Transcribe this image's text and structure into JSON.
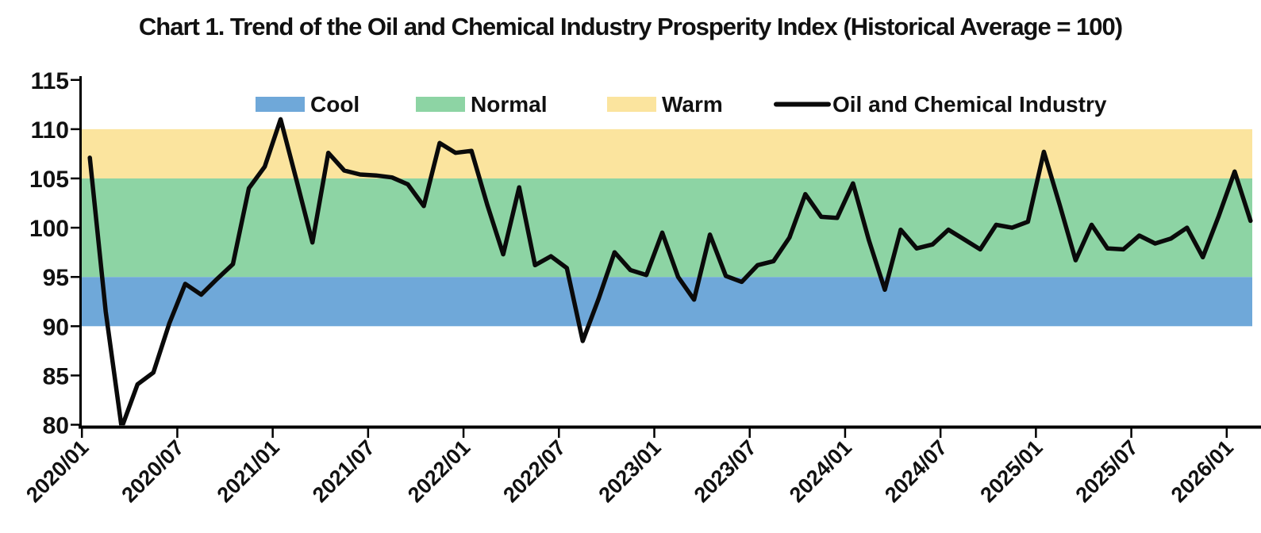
{
  "chart_data": {
    "type": "line",
    "title": "Chart 1. Trend of the Oil and Chemical Industry Prosperity Index (Historical Average = 100)",
    "xlabel": "",
    "ylabel": "",
    "ylim": [
      80,
      115
    ],
    "yticks": [
      80,
      85,
      90,
      95,
      100,
      105,
      110,
      115
    ],
    "grid": false,
    "legend_position": "top",
    "xtick_labels": [
      "2020/01",
      "2020/07",
      "2021/01",
      "2021/07",
      "2022/01",
      "2022/07",
      "2023/01",
      "2023/07",
      "2024/01",
      "2024/07",
      "2025/01",
      "2025/07",
      "2026/01"
    ],
    "x": [
      "2020/01",
      "2020/02",
      "2020/03",
      "2020/04",
      "2020/05",
      "2020/06",
      "2020/07",
      "2020/08",
      "2020/09",
      "2020/10",
      "2020/11",
      "2020/12",
      "2021/01",
      "2021/02",
      "2021/03",
      "2021/04",
      "2021/05",
      "2021/06",
      "2021/07",
      "2021/08",
      "2021/09",
      "2021/10",
      "2021/11",
      "2021/12",
      "2022/01",
      "2022/02",
      "2022/03",
      "2022/04",
      "2022/05",
      "2022/06",
      "2022/07",
      "2022/08",
      "2022/09",
      "2022/10",
      "2022/11",
      "2022/12",
      "2023/01",
      "2023/02",
      "2023/03",
      "2023/04",
      "2023/05",
      "2023/06",
      "2023/07",
      "2023/08",
      "2023/09",
      "2023/10",
      "2023/11",
      "2023/12",
      "2024/01",
      "2024/02",
      "2024/03",
      "2024/04",
      "2024/05",
      "2024/06",
      "2024/07",
      "2024/08",
      "2024/09",
      "2024/10",
      "2024/11",
      "2024/12",
      "2025/01",
      "2025/02",
      "2025/03",
      "2025/04",
      "2025/05",
      "2025/06",
      "2025/07",
      "2025/08",
      "2025/09",
      "2025/10",
      "2025/11",
      "2025/12",
      "2026/01",
      "2026/02"
    ],
    "series": [
      {
        "name": "Oil and Chemical Industry",
        "color": "#0a0a0a",
        "values": [
          107.1,
          91.5,
          77.1,
          84.1,
          85.3,
          90.3,
          94.3,
          93.2,
          94.8,
          96.3,
          104.0,
          106.2,
          111.0,
          104.8,
          98.5,
          107.6,
          105.8,
          105.4,
          105.3,
          105.1,
          104.4,
          102.2,
          108.6,
          107.6,
          107.8,
          102.3,
          97.3,
          104.1,
          96.2,
          97.1,
          95.9,
          88.5,
          92.8,
          97.5,
          95.7,
          95.2,
          99.5,
          95.0,
          92.7,
          99.3,
          95.1,
          94.5,
          96.2,
          96.6,
          99.0,
          103.4,
          101.1,
          101.0,
          104.5,
          98.7,
          93.7,
          99.8,
          97.9,
          98.3,
          99.8,
          98.8,
          97.8,
          100.3,
          100.0,
          100.6,
          107.7,
          102.3,
          96.7,
          100.3,
          97.9,
          97.8,
          99.2,
          98.4,
          98.9,
          100.0,
          97.0,
          101.2,
          105.7,
          100.7
        ]
      }
    ],
    "bands": [
      {
        "label": "Cool",
        "from": 90,
        "to": 95,
        "color": "#6fa8d9"
      },
      {
        "label": "Normal",
        "from": 95,
        "to": 105,
        "color": "#8dd4a4"
      },
      {
        "label": "Warm",
        "from": 105,
        "to": 110,
        "color": "#fbe49e"
      }
    ],
    "legend": [
      "Cool",
      "Normal",
      "Warm",
      "Oil and Chemical Industry"
    ]
  }
}
